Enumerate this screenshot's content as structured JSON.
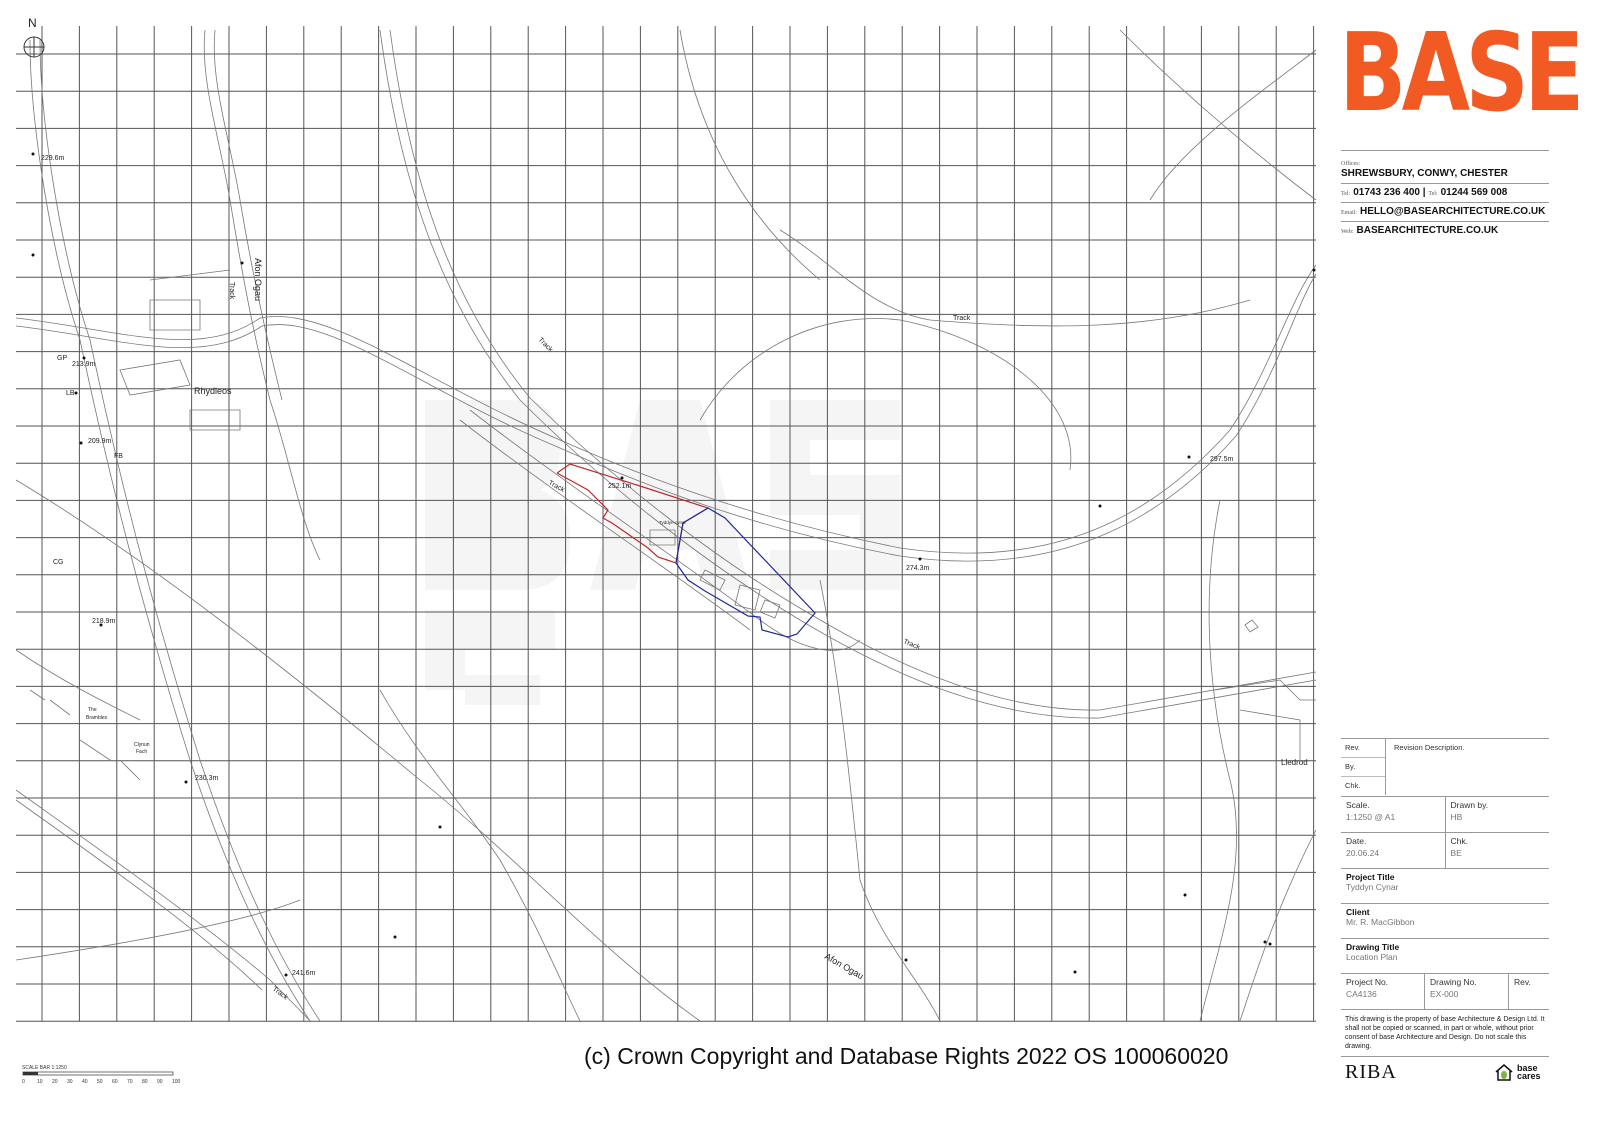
{
  "north_label": "N",
  "brand": {
    "logo": "BASE",
    "color": "#f15a22"
  },
  "contact": {
    "offices_label": "Offices:",
    "offices": "SHREWSBURY, CONWY, CHESTER",
    "tel1_label": "Tel:",
    "tel1": "01743 236 400 |",
    "tel2_label": "Tel:",
    "tel2": "01244 569 008",
    "email_label": "Email:",
    "email": "HELLO@BASEARCHITECTURE.CO.UK",
    "web_label": "Web:",
    "web": "BASEARCHITECTURE.CO.UK"
  },
  "revisions": {
    "rev": "Rev.",
    "by": "By.",
    "chk": "Chk.",
    "description": "Revision Description."
  },
  "title_block": {
    "scale_label": "Scale.",
    "scale": "1:1250 @ A1",
    "drawn_label": "Drawn by.",
    "drawn": "HB",
    "date_label": "Date.",
    "date": "20.06.24",
    "chk_label": "Chk.",
    "chk": "BE",
    "project_title_label": "Project Title",
    "project_title": "Tyddyn Cynar",
    "client_label": "Client",
    "client": "Mr. R. MacGibbon",
    "drawing_title_label": "Drawing Title",
    "drawing_title": "Location Plan",
    "project_no_label": "Project No.",
    "project_no": "CA4136",
    "drawing_no_label": "Drawing No.",
    "drawing_no": "EX-000",
    "rev_label": "Rev."
  },
  "disclaimer": "This drawing is the property of base Architecture & Design Ltd. It shall not be copied or scanned, in part or whole, without prior consent of base Architecture and Design. Do not scale this drawing.",
  "footer_logos": {
    "riba": "RIBA",
    "base_cares": "base cares"
  },
  "copyright": "(c) Crown Copyright and Database Rights 2022 OS 100060020",
  "scale_bar": {
    "title": "SCALE BAR 1:1250",
    "ticks": [
      "0",
      "10",
      "20",
      "30",
      "40",
      "50",
      "60",
      "70",
      "80",
      "90",
      "100"
    ]
  },
  "boundary_colors": {
    "site": "#c0272d",
    "ownership": "#1f2a9b"
  },
  "map_labels": {
    "spot_229": "229.6m",
    "afon_ogau_1": "Afon Ogau",
    "track_1": "Track",
    "gp": "GP",
    "spot_213": "213.9m",
    "lb": "LB",
    "rhydleos": "Rhydleos",
    "spot_209": "209.9m",
    "fb": "FB",
    "cg": "CG",
    "spot_218": "218.9m",
    "the_brambles_1": "The",
    "the_brambles_2": "Brambles",
    "clynun_1": "Clynun",
    "clynun_2": "Fach",
    "spot_230": "230.3m",
    "spot_241": "241.6m",
    "track_2": "Track",
    "track_3": "Track",
    "track_4": "Track",
    "spot_252": "252.1m",
    "tyddyn": "Tyddyn-cynar",
    "spot_274": "274.3m",
    "track_5": "Track",
    "spot_297": "297.5m",
    "track_6": "Track",
    "afon_ogau_2": "Afon Ogau",
    "lledrod": "Lledrod"
  }
}
